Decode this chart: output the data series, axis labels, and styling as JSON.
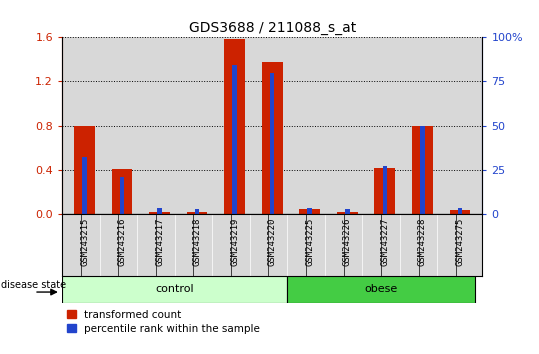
{
  "title": "GDS3688 / 211088_s_at",
  "samples": [
    "GSM243215",
    "GSM243216",
    "GSM243217",
    "GSM243218",
    "GSM243219",
    "GSM243220",
    "GSM243225",
    "GSM243226",
    "GSM243227",
    "GSM243228",
    "GSM243275"
  ],
  "red_values": [
    0.8,
    0.41,
    0.02,
    0.02,
    1.58,
    1.38,
    0.05,
    0.02,
    0.42,
    0.8,
    0.04
  ],
  "blue_pct": [
    32.5,
    21.25,
    3.44,
    2.81,
    84.0,
    80.0,
    3.44,
    2.81,
    27.0,
    50.0,
    3.44
  ],
  "control_count": 6,
  "obese_count": 5,
  "ylim_left": [
    0,
    1.6
  ],
  "ylim_right": [
    0,
    100
  ],
  "yticks_left": [
    0,
    0.4,
    0.8,
    1.2,
    1.6
  ],
  "yticks_right": [
    0,
    25,
    50,
    75,
    100
  ],
  "group_labels": [
    "control",
    "obese"
  ],
  "legend_red": "transformed count",
  "legend_blue": "percentile rank within the sample",
  "disease_state_label": "disease state",
  "bar_color_red": "#cc2200",
  "bar_color_blue": "#2244cc",
  "control_bg": "#ccffcc",
  "obese_bg": "#44cc44",
  "axis_bg": "#d8d8d8",
  "red_bar_width": 0.55,
  "blue_bar_width": 0.12
}
